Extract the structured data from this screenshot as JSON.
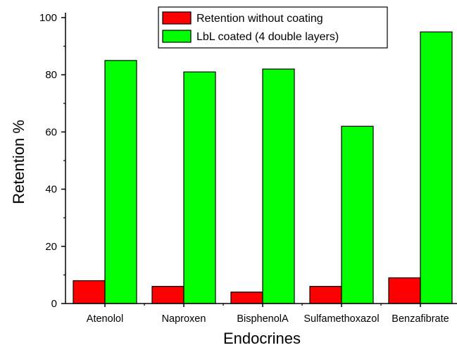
{
  "chart_data": {
    "type": "bar",
    "xlabel": "Endocrines",
    "ylabel": "Retention %",
    "ylim": [
      0,
      100
    ],
    "yticks": [
      0,
      20,
      40,
      60,
      80,
      100
    ],
    "categories": [
      "Atenolol",
      "Naproxen",
      "BisphenolA",
      "Sulfamethoxazol",
      "Benzafibrate"
    ],
    "series": [
      {
        "name": "Retention without coating",
        "color": "#ff0000",
        "values": [
          8,
          6,
          4,
          6,
          9
        ]
      },
      {
        "name": "LbL coated (4 double layers)",
        "color": "#00ff00",
        "values": [
          85,
          81,
          82,
          62,
          95
        ]
      }
    ],
    "legend_position": "top-right",
    "grid": false
  }
}
